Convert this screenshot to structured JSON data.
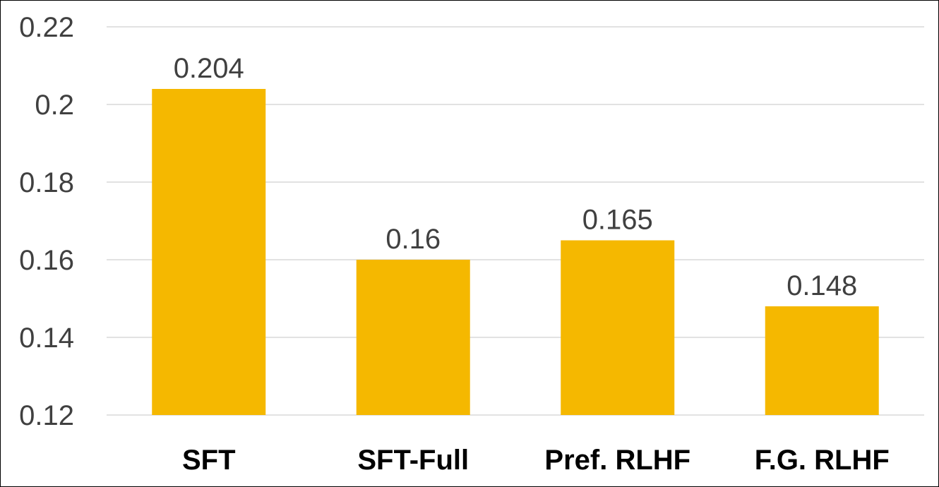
{
  "chart_data": {
    "type": "bar",
    "categories": [
      "SFT",
      "SFT-Full",
      "Pref. RLHF",
      "F.G. RLHF"
    ],
    "values": [
      0.204,
      0.16,
      0.165,
      0.148
    ],
    "data_labels": [
      "0.204",
      "0.16",
      "0.165",
      "0.148"
    ],
    "title": "",
    "xlabel": "",
    "ylabel": "",
    "ylim": [
      0.12,
      0.22
    ],
    "yticks": [
      0.12,
      0.14,
      0.16,
      0.18,
      0.2,
      0.22
    ],
    "ytick_labels": [
      "0.12",
      "0.14",
      "0.16",
      "0.18",
      "0.2",
      "0.22"
    ],
    "grid": true,
    "legend": "none",
    "bar_color": "#f5b800"
  }
}
